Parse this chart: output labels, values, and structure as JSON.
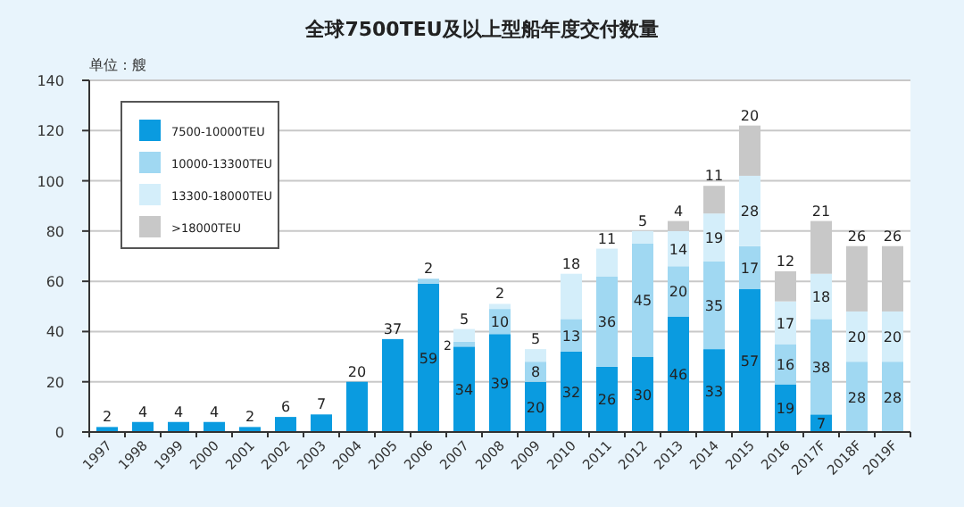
{
  "chart_data": {
    "type": "bar",
    "stacked": true,
    "title": "全球7500TEU及以上型船年度交付数量",
    "annotations": [
      "单位：艘"
    ],
    "categories": [
      "1997",
      "1998",
      "1999",
      "2000",
      "2001",
      "2002",
      "2003",
      "2004",
      "2005",
      "2006",
      "2007",
      "2008",
      "2009",
      "2010",
      "2011",
      "2012",
      "2013",
      "2014",
      "2015",
      "2016",
      "2017F",
      "2018F",
      "2019F"
    ],
    "series": [
      {
        "name": "7500-10000TEU",
        "color": "#0a9be0",
        "values": [
          2,
          4,
          4,
          4,
          2,
          6,
          7,
          20,
          37,
          59,
          34,
          39,
          20,
          32,
          26,
          30,
          46,
          33,
          57,
          19,
          7,
          null,
          null
        ]
      },
      {
        "name": "10000-13300TEU",
        "color": "#a0d8f2",
        "values": [
          null,
          null,
          null,
          null,
          null,
          null,
          null,
          null,
          null,
          2,
          2,
          10,
          8,
          13,
          36,
          45,
          20,
          35,
          17,
          16,
          38,
          28,
          28
        ]
      },
      {
        "name": "13300-18000TEU",
        "color": "#d4eefa",
        "values": [
          null,
          null,
          null,
          null,
          null,
          null,
          null,
          null,
          null,
          null,
          5,
          2,
          5,
          18,
          11,
          5,
          14,
          19,
          28,
          17,
          18,
          20,
          20
        ]
      },
      {
        "name": ">18000TEU",
        "color": "#c8c8c8",
        "values": [
          null,
          null,
          null,
          null,
          null,
          null,
          null,
          null,
          null,
          null,
          null,
          null,
          null,
          null,
          null,
          null,
          4,
          11,
          20,
          12,
          21,
          26,
          26
        ]
      }
    ],
    "ylim": [
      0,
      140
    ],
    "yticks": [
      0,
      20,
      40,
      60,
      80,
      100,
      120,
      140
    ],
    "grid": "y",
    "legend": "top left",
    "data_labels": true
  }
}
